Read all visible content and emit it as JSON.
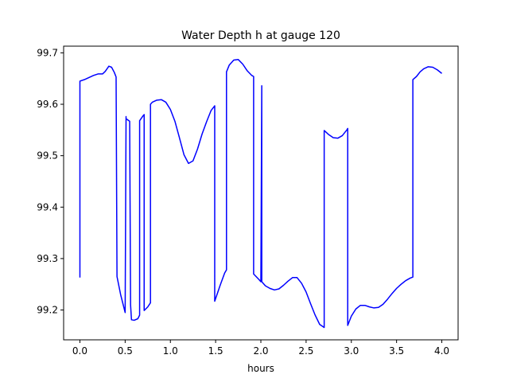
{
  "chart_data": {
    "type": "line",
    "title": "Water Depth h at gauge 120",
    "xlabel": "hours",
    "ylabel": "",
    "xlim": [
      -0.18,
      4.18
    ],
    "ylim": [
      99.142,
      99.713
    ],
    "xticks": [
      0.0,
      0.5,
      1.0,
      1.5,
      2.0,
      2.5,
      3.0,
      3.5,
      4.0
    ],
    "xtick_labels": [
      "0.0",
      "0.5",
      "1.0",
      "1.5",
      "2.0",
      "2.5",
      "3.0",
      "3.5",
      "4.0"
    ],
    "yticks": [
      99.2,
      99.3,
      99.4,
      99.5,
      99.6,
      99.7
    ],
    "ytick_labels": [
      "99.2",
      "99.3",
      "99.4",
      "99.5",
      "99.6",
      "99.7"
    ],
    "grid": false,
    "color": "#0000ff",
    "series": [
      {
        "x": [
          0.0,
          0.0,
          0.05,
          0.1,
          0.15,
          0.2,
          0.25,
          0.28,
          0.32,
          0.35,
          0.38,
          0.4,
          0.41,
          0.45,
          0.5,
          0.51,
          0.51,
          0.55,
          0.56,
          0.57,
          0.6,
          0.64,
          0.66,
          0.66,
          0.7,
          0.71,
          0.71,
          0.75,
          0.78,
          0.78,
          0.8,
          0.85,
          0.9,
          0.95,
          1.0,
          1.05,
          1.1,
          1.15,
          1.2,
          1.25,
          1.3,
          1.35,
          1.4,
          1.45,
          1.49,
          1.49,
          1.55,
          1.6,
          1.62,
          1.62,
          1.65,
          1.7,
          1.75,
          1.8,
          1.85,
          1.9,
          1.92,
          1.92,
          1.98,
          2.0,
          2.01,
          2.01,
          2.05,
          2.1,
          2.15,
          2.2,
          2.25,
          2.3,
          2.35,
          2.4,
          2.45,
          2.5,
          2.55,
          2.6,
          2.65,
          2.7,
          2.7,
          2.75,
          2.8,
          2.85,
          2.9,
          2.95,
          2.96,
          2.96,
          3.0,
          3.05,
          3.1,
          3.15,
          3.2,
          3.25,
          3.3,
          3.35,
          3.4,
          3.45,
          3.5,
          3.55,
          3.6,
          3.65,
          3.68,
          3.68,
          3.72,
          3.76,
          3.8,
          3.85,
          3.9,
          3.95,
          4.0
        ],
        "y": [
          99.263,
          99.645,
          99.648,
          99.652,
          99.656,
          99.659,
          99.659,
          99.664,
          99.674,
          99.672,
          99.662,
          99.653,
          99.265,
          99.23,
          99.195,
          99.576,
          99.572,
          99.567,
          99.21,
          99.181,
          99.18,
          99.183,
          99.19,
          99.568,
          99.578,
          99.58,
          99.199,
          99.206,
          99.214,
          99.6,
          99.604,
          99.608,
          99.609,
          99.604,
          99.59,
          99.567,
          99.535,
          99.502,
          99.485,
          99.49,
          99.513,
          99.542,
          99.566,
          99.588,
          99.597,
          99.217,
          99.248,
          99.272,
          99.278,
          99.663,
          99.676,
          99.686,
          99.687,
          99.678,
          99.665,
          99.656,
          99.654,
          99.27,
          99.259,
          99.255,
          99.636,
          99.255,
          99.247,
          99.242,
          99.239,
          99.241,
          99.248,
          99.256,
          99.263,
          99.263,
          99.252,
          99.235,
          99.212,
          99.19,
          99.172,
          99.166,
          99.549,
          99.541,
          99.535,
          99.534,
          99.539,
          99.55,
          99.553,
          99.17,
          99.188,
          99.202,
          99.209,
          99.209,
          99.206,
          99.204,
          99.205,
          99.211,
          99.221,
          99.232,
          99.242,
          99.25,
          99.257,
          99.262,
          99.264,
          99.648,
          99.654,
          99.663,
          99.669,
          99.673,
          99.672,
          99.667,
          99.66
        ]
      }
    ]
  }
}
